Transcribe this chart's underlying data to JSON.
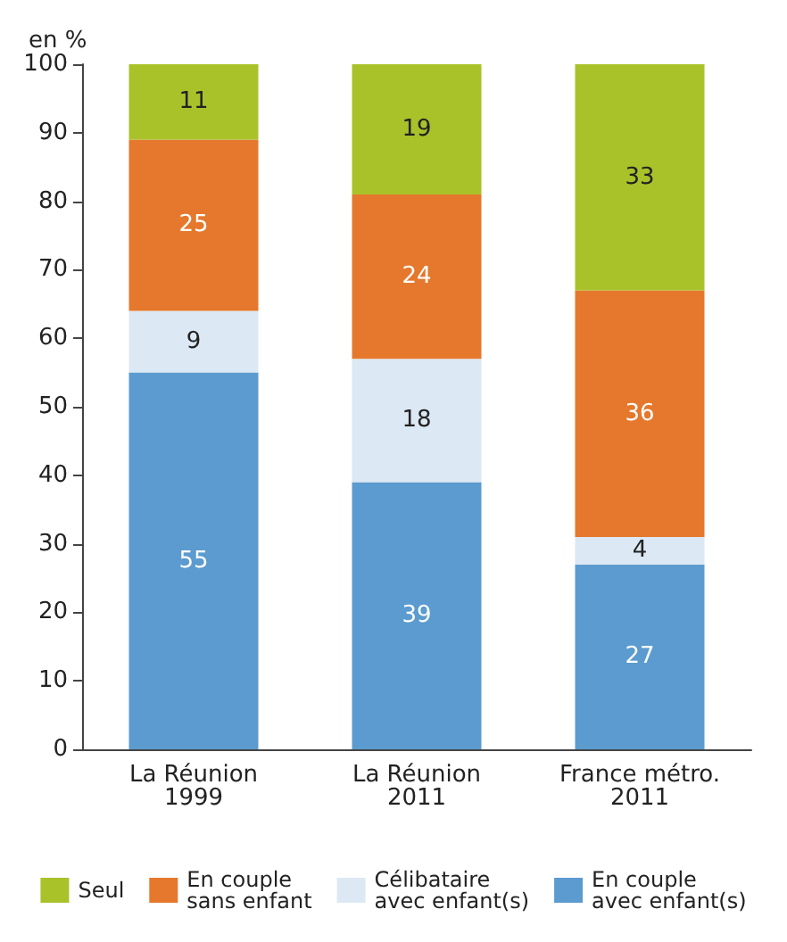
{
  "chart_data": {
    "type": "bar",
    "stacked": true,
    "ylabel": "en %",
    "categories": [
      "La Réunion\n1999",
      "La Réunion\n2011",
      "France métro.\n2011"
    ],
    "series": [
      {
        "name": "En couple\navec enfant(s)",
        "color": "#5b9bcf",
        "values": [
          55,
          39,
          27
        ]
      },
      {
        "name": "Célibataire\navec enfant(s)",
        "color": "#dce8f4",
        "values": [
          9,
          18,
          4
        ]
      },
      {
        "name": "En couple\nsans enfant",
        "color": "#e5782c",
        "values": [
          25,
          24,
          36
        ]
      },
      {
        "name": "Seul",
        "color": "#a9c22a",
        "values": [
          11,
          19,
          33
        ]
      }
    ],
    "ylim": [
      0,
      100
    ],
    "yticks": [
      0,
      10,
      20,
      30,
      40,
      50,
      60,
      70,
      80,
      90,
      100
    ],
    "grid": false,
    "legend": "bottom",
    "data_labels": true
  }
}
